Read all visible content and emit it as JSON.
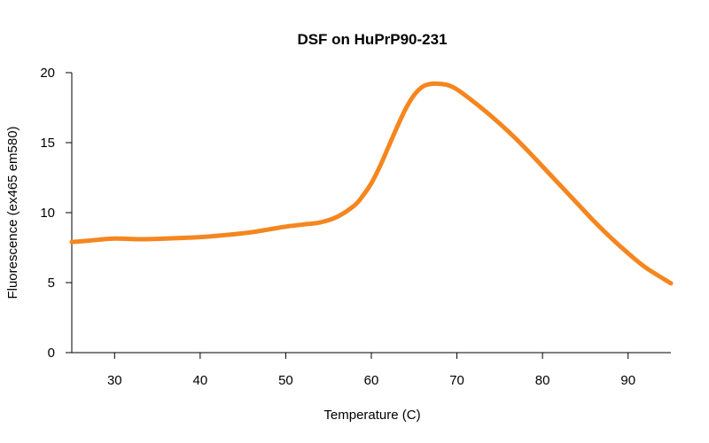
{
  "chart_data": {
    "type": "line",
    "title": "DSF on HuPrP90-231",
    "xlabel": "Temperature (C)",
    "ylabel": "Fluorescence (ex465 em580)",
    "xlim": [
      25,
      95
    ],
    "ylim": [
      0,
      20
    ],
    "xticks": [
      30,
      40,
      50,
      60,
      70,
      80,
      90
    ],
    "yticks": [
      0,
      5,
      10,
      15,
      20
    ],
    "grid": false,
    "series": [
      {
        "color": "#f5861f",
        "x": [
          25,
          27,
          30,
          33,
          36,
          40,
          43,
          46,
          48,
          50,
          52,
          54,
          56,
          58,
          59,
          60,
          61,
          62,
          63,
          64,
          65,
          66,
          67,
          68,
          69,
          70,
          72,
          74,
          76,
          78,
          80,
          82,
          84,
          86,
          88,
          90,
          92,
          95
        ],
        "y": [
          7.9,
          8.0,
          8.15,
          8.1,
          8.15,
          8.25,
          8.4,
          8.6,
          8.8,
          9.0,
          9.15,
          9.3,
          9.7,
          10.5,
          11.2,
          12.1,
          13.3,
          14.7,
          16.1,
          17.4,
          18.4,
          19.0,
          19.2,
          19.2,
          19.1,
          18.8,
          17.9,
          16.9,
          15.8,
          14.6,
          13.3,
          12.0,
          10.7,
          9.4,
          8.2,
          7.1,
          6.1,
          4.95
        ]
      }
    ]
  }
}
